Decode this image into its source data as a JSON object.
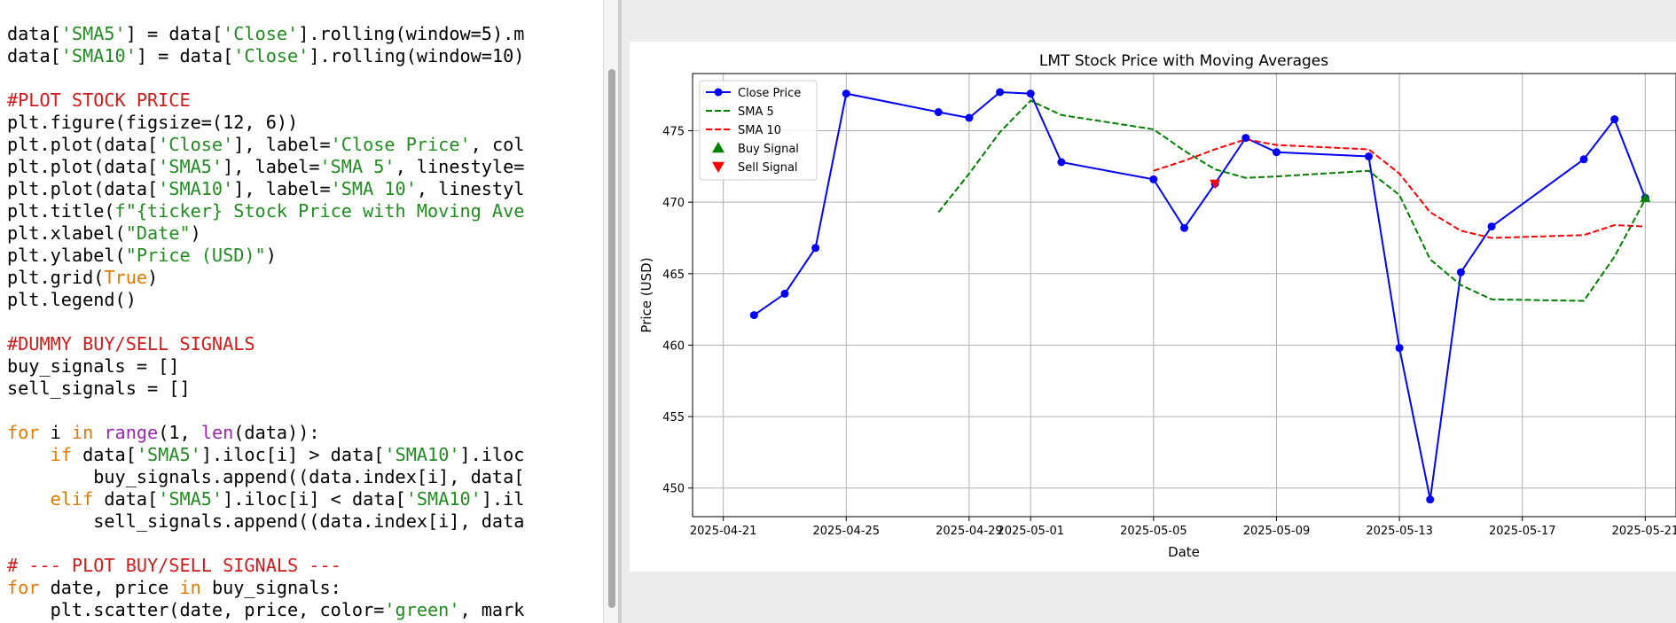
{
  "editor": {
    "code_lines": [
      [
        {
          "t": "data["
        },
        {
          "t": "'SMA5'",
          "c": "s"
        },
        {
          "t": "] = data["
        },
        {
          "t": "'Close'",
          "c": "s"
        },
        {
          "t": "].rolling(window=5).m"
        }
      ],
      [
        {
          "t": "data["
        },
        {
          "t": "'SMA10'",
          "c": "s"
        },
        {
          "t": "] = data["
        },
        {
          "t": "'Close'",
          "c": "s"
        },
        {
          "t": "].rolling(window=10)"
        }
      ],
      [],
      [
        {
          "t": "#PLOT STOCK PRICE",
          "c": "c"
        }
      ],
      [
        {
          "t": "plt.figure(figsize=(12, 6))"
        }
      ],
      [
        {
          "t": "plt.plot(data["
        },
        {
          "t": "'Close'",
          "c": "s"
        },
        {
          "t": "], label="
        },
        {
          "t": "'Close Price'",
          "c": "s"
        },
        {
          "t": ", col"
        }
      ],
      [
        {
          "t": "plt.plot(data["
        },
        {
          "t": "'SMA5'",
          "c": "s"
        },
        {
          "t": "], label="
        },
        {
          "t": "'SMA 5'",
          "c": "s"
        },
        {
          "t": ", linestyle="
        }
      ],
      [
        {
          "t": "plt.plot(data["
        },
        {
          "t": "'SMA10'",
          "c": "s"
        },
        {
          "t": "], label="
        },
        {
          "t": "'SMA 10'",
          "c": "s"
        },
        {
          "t": ", linestyl"
        }
      ],
      [
        {
          "t": "plt.title("
        },
        {
          "t": "f\"{ticker} Stock Price with Moving Ave",
          "c": "s"
        }
      ],
      [
        {
          "t": "plt.xlabel("
        },
        {
          "t": "\"Date\"",
          "c": "s"
        },
        {
          "t": ")"
        }
      ],
      [
        {
          "t": "plt.ylabel("
        },
        {
          "t": "\"Price (USD)\"",
          "c": "s"
        },
        {
          "t": ")"
        }
      ],
      [
        {
          "t": "plt.grid("
        },
        {
          "t": "True",
          "c": "k"
        },
        {
          "t": ")"
        }
      ],
      [
        {
          "t": "plt.legend()"
        }
      ],
      [],
      [
        {
          "t": "#DUMMY BUY/SELL SIGNALS",
          "c": "c"
        }
      ],
      [
        {
          "t": "buy_signals = []"
        }
      ],
      [
        {
          "t": "sell_signals = []"
        }
      ],
      [],
      [
        {
          "t": "for",
          "c": "k"
        },
        {
          "t": " i "
        },
        {
          "t": "in",
          "c": "k"
        },
        {
          "t": " "
        },
        {
          "t": "range",
          "c": "b"
        },
        {
          "t": "(1, "
        },
        {
          "t": "len",
          "c": "b"
        },
        {
          "t": "(data)):"
        }
      ],
      [
        {
          "t": "    "
        },
        {
          "t": "if",
          "c": "k"
        },
        {
          "t": " data["
        },
        {
          "t": "'SMA5'",
          "c": "s"
        },
        {
          "t": "].iloc[i] > data["
        },
        {
          "t": "'SMA10'",
          "c": "s"
        },
        {
          "t": "].iloc"
        }
      ],
      [
        {
          "t": "        buy_signals.append((data.index[i], data["
        }
      ],
      [
        {
          "t": "    "
        },
        {
          "t": "elif",
          "c": "k"
        },
        {
          "t": " data["
        },
        {
          "t": "'SMA5'",
          "c": "s"
        },
        {
          "t": "].iloc[i] < data["
        },
        {
          "t": "'SMA10'",
          "c": "s"
        },
        {
          "t": "].il"
        }
      ],
      [
        {
          "t": "        sell_signals.append((data.index[i], data"
        }
      ],
      [],
      [
        {
          "t": "# --- PLOT BUY/SELL SIGNALS ---",
          "c": "c"
        }
      ],
      [
        {
          "t": "for",
          "c": "k"
        },
        {
          "t": " date, price "
        },
        {
          "t": "in",
          "c": "k"
        },
        {
          "t": " buy_signals:"
        }
      ],
      [
        {
          "t": "    plt.scatter(date, price, color="
        },
        {
          "t": "'green'",
          "c": "s"
        },
        {
          "t": ", mark"
        }
      ]
    ]
  },
  "chart_data": {
    "type": "line",
    "title": "LMT Stock Price with Moving Averages",
    "xlabel": "Date",
    "ylabel": "Price (USD)",
    "grid": true,
    "legend_position": "top-left",
    "xlim": [
      "2025-04-20",
      "2025-05-22"
    ],
    "ylim": [
      448,
      479
    ],
    "x_ticks": [
      "2025-04-21",
      "2025-04-25",
      "2025-04-29",
      "2025-05-01",
      "2025-05-05",
      "2025-05-09",
      "2025-05-13",
      "2025-05-17",
      "2025-05-21"
    ],
    "y_ticks": [
      450,
      455,
      460,
      465,
      470,
      475
    ],
    "series": [
      {
        "name": "Close Price",
        "color": "#0000ff",
        "style": "solid-markers",
        "points": [
          [
            "2025-04-22",
            462.1
          ],
          [
            "2025-04-23",
            463.6
          ],
          [
            "2025-04-24",
            466.8
          ],
          [
            "2025-04-25",
            477.6
          ],
          [
            "2025-04-28",
            476.3
          ],
          [
            "2025-04-29",
            475.9
          ],
          [
            "2025-04-30",
            477.7
          ],
          [
            "2025-05-01",
            477.6
          ],
          [
            "2025-05-02",
            472.8
          ],
          [
            "2025-05-05",
            471.6
          ],
          [
            "2025-05-06",
            468.2
          ],
          [
            "2025-05-07",
            471.3
          ],
          [
            "2025-05-08",
            474.5
          ],
          [
            "2025-05-09",
            473.5
          ],
          [
            "2025-05-12",
            473.2
          ],
          [
            "2025-05-13",
            459.8
          ],
          [
            "2025-05-14",
            449.2
          ],
          [
            "2025-05-15",
            465.1
          ],
          [
            "2025-05-16",
            468.3
          ],
          [
            "2025-05-19",
            473.0
          ],
          [
            "2025-05-20",
            475.8
          ],
          [
            "2025-05-21",
            470.3
          ]
        ]
      },
      {
        "name": "SMA 5",
        "color": "#008000",
        "style": "dashed",
        "points": [
          [
            "2025-04-28",
            469.3
          ],
          [
            "2025-04-29",
            472.0
          ],
          [
            "2025-04-30",
            474.9
          ],
          [
            "2025-05-01",
            477.1
          ],
          [
            "2025-05-02",
            476.1
          ],
          [
            "2025-05-05",
            475.1
          ],
          [
            "2025-05-06",
            473.6
          ],
          [
            "2025-05-07",
            472.3
          ],
          [
            "2025-05-08",
            471.7
          ],
          [
            "2025-05-09",
            471.8
          ],
          [
            "2025-05-12",
            472.2
          ],
          [
            "2025-05-13",
            470.5
          ],
          [
            "2025-05-14",
            466.0
          ],
          [
            "2025-05-15",
            464.2
          ],
          [
            "2025-05-16",
            463.2
          ],
          [
            "2025-05-19",
            463.1
          ],
          [
            "2025-05-20",
            466.2
          ],
          [
            "2025-05-21",
            470.2
          ]
        ]
      },
      {
        "name": "SMA 10",
        "color": "#ff0000",
        "style": "dashed",
        "points": [
          [
            "2025-05-05",
            472.2
          ],
          [
            "2025-05-06",
            472.9
          ],
          [
            "2025-05-07",
            473.7
          ],
          [
            "2025-05-08",
            474.4
          ],
          [
            "2025-05-09",
            474.0
          ],
          [
            "2025-05-12",
            473.7
          ],
          [
            "2025-05-13",
            472.0
          ],
          [
            "2025-05-14",
            469.3
          ],
          [
            "2025-05-15",
            468.0
          ],
          [
            "2025-05-16",
            467.5
          ],
          [
            "2025-05-19",
            467.7
          ],
          [
            "2025-05-20",
            468.4
          ],
          [
            "2025-05-21",
            468.3
          ]
        ]
      }
    ],
    "signals": [
      {
        "name": "Buy Signal",
        "color": "#008000",
        "marker": "triangle-up",
        "points": [
          [
            "2025-05-21",
            470.3
          ]
        ]
      },
      {
        "name": "Sell Signal",
        "color": "#ff0000",
        "marker": "triangle-down",
        "points": [
          [
            "2025-05-07",
            471.3
          ]
        ]
      }
    ]
  }
}
